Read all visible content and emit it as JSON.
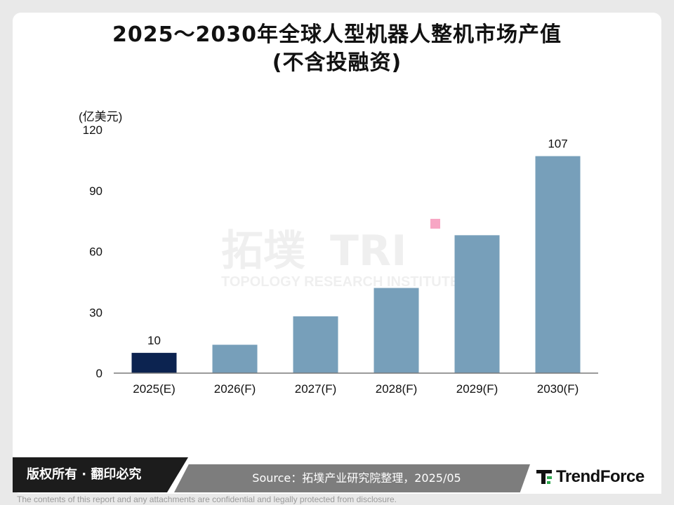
{
  "header": {
    "title_line1": "2025～2030年全球人型机器人整机市场产值",
    "title_line2": "(不含投融资)"
  },
  "watermark": {
    "name": "拓墣",
    "text": "TOPOLOGY RESEARCH INSTITUTE",
    "icon": "tri-logo-icon"
  },
  "chart_data": {
    "type": "bar",
    "title": "2025～2030年全球人型机器人整机市场产值 (不含投融资)",
    "unit_label": "(亿美元)",
    "categories": [
      "2025(E)",
      "2026(F)",
      "2027(F)",
      "2028(F)",
      "2029(F)",
      "2030(F)"
    ],
    "values": [
      10,
      14,
      28,
      42,
      68,
      107
    ],
    "data_labels": [
      "10",
      "",
      "",
      "",
      "",
      "107"
    ],
    "highlight_color": "#0c2350",
    "bar_color": "#779fba",
    "ylim": [
      0,
      120
    ],
    "yticks": [
      0,
      30,
      60,
      90,
      120
    ],
    "ytick_labels": [
      "0",
      "30",
      "60",
      "90",
      "120"
    ],
    "grid": false,
    "legend": "none"
  },
  "footer": {
    "rights": "版权所有 · 翻印必究",
    "source": "Source：拓墣产业研究院整理，2025/05",
    "brand": "TrendForce",
    "brand_icon": "trendforce-logo-icon",
    "disclaimer": "The contents of this report and any attachments are confidential and legally protected from disclosure."
  }
}
